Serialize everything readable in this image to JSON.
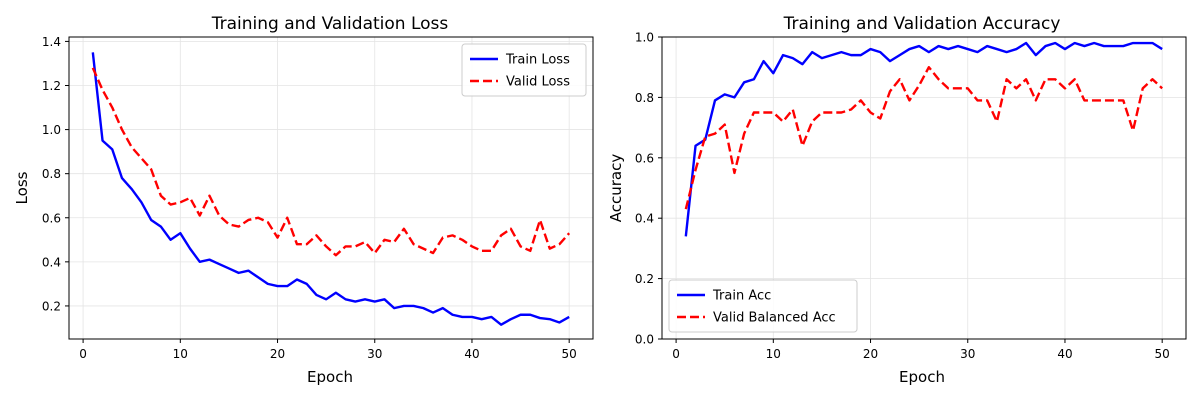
{
  "chart_data": [
    {
      "type": "line",
      "title": "Training and Validation Loss",
      "xlabel": "Epoch",
      "ylabel": "Loss",
      "xlim": [
        -1.45,
        52.45
      ],
      "ylim": [
        0.05,
        1.42
      ],
      "xticks": [
        0,
        10,
        20,
        30,
        40,
        50
      ],
      "yticks": [
        0.2,
        0.4,
        0.6,
        0.8,
        1.0,
        1.2,
        1.4
      ],
      "yticks_decimals": 1,
      "grid": true,
      "legend": "top-right",
      "x": [
        1,
        2,
        3,
        4,
        5,
        6,
        7,
        8,
        9,
        10,
        11,
        12,
        13,
        14,
        15,
        16,
        17,
        18,
        19,
        20,
        21,
        22,
        23,
        24,
        25,
        26,
        27,
        28,
        29,
        30,
        31,
        32,
        33,
        34,
        35,
        36,
        37,
        38,
        39,
        40,
        41,
        42,
        43,
        44,
        45,
        46,
        47,
        48,
        49,
        50
      ],
      "series": [
        {
          "name": "Train Loss",
          "color": "#0000ff",
          "style": "solid",
          "values": [
            1.35,
            0.95,
            0.91,
            0.78,
            0.73,
            0.67,
            0.59,
            0.56,
            0.5,
            0.53,
            0.46,
            0.4,
            0.41,
            0.39,
            0.37,
            0.35,
            0.36,
            0.33,
            0.3,
            0.29,
            0.29,
            0.32,
            0.3,
            0.25,
            0.23,
            0.26,
            0.23,
            0.22,
            0.23,
            0.22,
            0.23,
            0.19,
            0.2,
            0.2,
            0.19,
            0.17,
            0.19,
            0.16,
            0.15,
            0.15,
            0.14,
            0.15,
            0.115,
            0.14,
            0.16,
            0.16,
            0.145,
            0.14,
            0.125,
            0.15
          ]
        },
        {
          "name": "Valid Loss",
          "color": "#ff0000",
          "style": "dashed",
          "values": [
            1.28,
            1.18,
            1.1,
            1.0,
            0.92,
            0.87,
            0.82,
            0.7,
            0.66,
            0.67,
            0.69,
            0.61,
            0.7,
            0.61,
            0.57,
            0.56,
            0.59,
            0.6,
            0.58,
            0.51,
            0.6,
            0.48,
            0.48,
            0.52,
            0.47,
            0.43,
            0.47,
            0.47,
            0.49,
            0.44,
            0.5,
            0.49,
            0.55,
            0.48,
            0.46,
            0.44,
            0.51,
            0.52,
            0.5,
            0.47,
            0.45,
            0.45,
            0.52,
            0.55,
            0.47,
            0.45,
            0.59,
            0.46,
            0.48,
            0.53
          ]
        }
      ]
    },
    {
      "type": "line",
      "title": "Training and Validation Accuracy",
      "xlabel": "Epoch",
      "ylabel": "Accuracy",
      "xlim": [
        -1.45,
        52.45
      ],
      "ylim": [
        0,
        1.0
      ],
      "xticks": [
        0,
        10,
        20,
        30,
        40,
        50
      ],
      "yticks": [
        0.0,
        0.2,
        0.4,
        0.6,
        0.8,
        1.0
      ],
      "yticks_decimals": 1,
      "grid": true,
      "legend": "bottom-left",
      "x": [
        1,
        2,
        3,
        4,
        5,
        6,
        7,
        8,
        9,
        10,
        11,
        12,
        13,
        14,
        15,
        16,
        17,
        18,
        19,
        20,
        21,
        22,
        23,
        24,
        25,
        26,
        27,
        28,
        29,
        30,
        31,
        32,
        33,
        34,
        35,
        36,
        37,
        38,
        39,
        40,
        41,
        42,
        43,
        44,
        45,
        46,
        47,
        48,
        49,
        50
      ],
      "series": [
        {
          "name": "Train Acc",
          "color": "#0000ff",
          "style": "solid",
          "values": [
            0.34,
            0.64,
            0.66,
            0.79,
            0.81,
            0.8,
            0.85,
            0.86,
            0.92,
            0.88,
            0.94,
            0.93,
            0.91,
            0.95,
            0.93,
            0.94,
            0.95,
            0.94,
            0.94,
            0.96,
            0.95,
            0.92,
            0.94,
            0.96,
            0.97,
            0.95,
            0.97,
            0.96,
            0.97,
            0.96,
            0.95,
            0.97,
            0.96,
            0.95,
            0.96,
            0.98,
            0.94,
            0.97,
            0.98,
            0.96,
            0.98,
            0.97,
            0.98,
            0.97,
            0.97,
            0.97,
            0.98,
            0.98,
            0.98,
            0.96
          ]
        },
        {
          "name": "Valid Balanced Acc",
          "color": "#ff0000",
          "style": "dashed",
          "values": [
            0.43,
            0.56,
            0.67,
            0.68,
            0.71,
            0.55,
            0.68,
            0.75,
            0.75,
            0.75,
            0.72,
            0.76,
            0.64,
            0.72,
            0.75,
            0.75,
            0.75,
            0.76,
            0.79,
            0.75,
            0.73,
            0.82,
            0.86,
            0.79,
            0.84,
            0.9,
            0.86,
            0.83,
            0.83,
            0.83,
            0.79,
            0.79,
            0.72,
            0.86,
            0.83,
            0.86,
            0.79,
            0.86,
            0.86,
            0.83,
            0.86,
            0.79,
            0.79,
            0.79,
            0.79,
            0.79,
            0.69,
            0.83,
            0.86,
            0.83
          ]
        }
      ]
    }
  ]
}
